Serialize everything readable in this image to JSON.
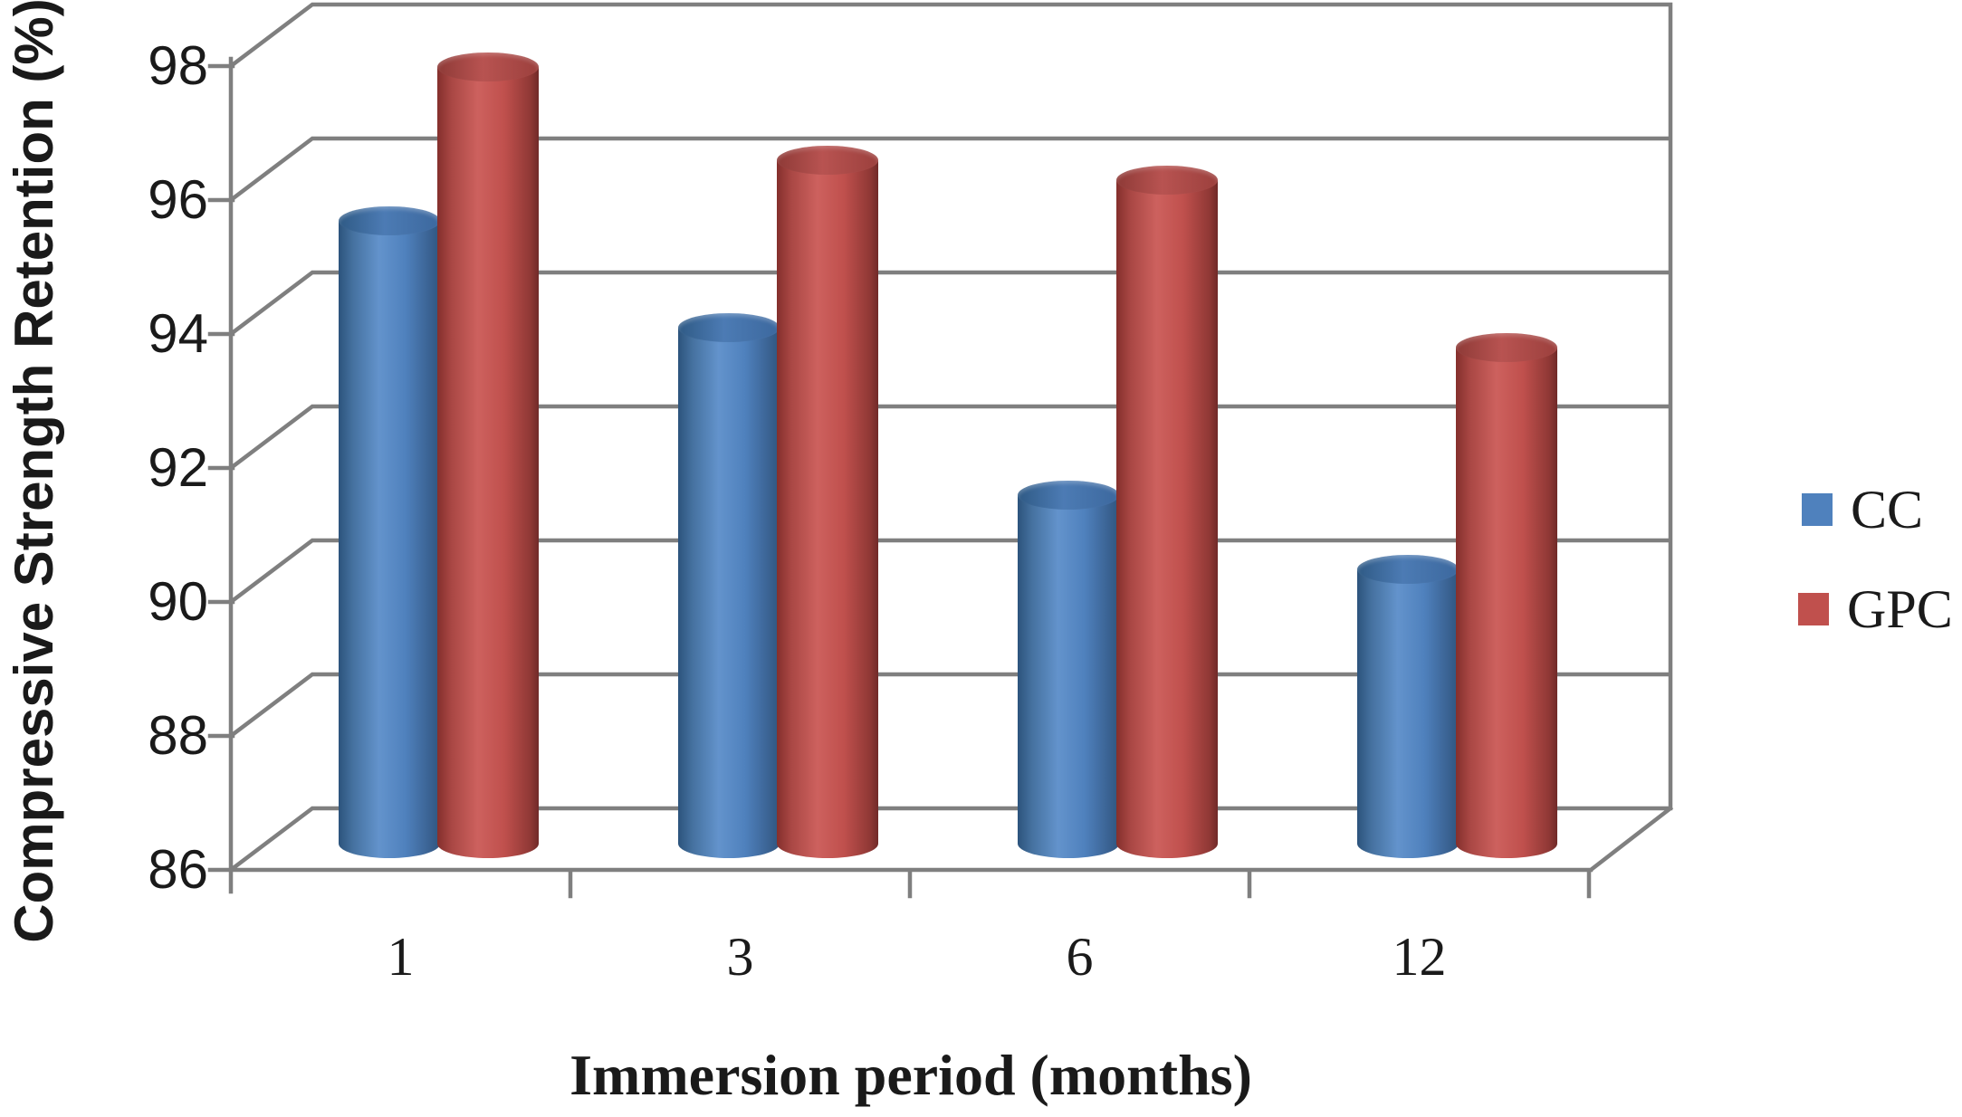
{
  "figure": {
    "background": "#ffffff",
    "text_color": "#1a1a1a"
  },
  "chart_data": {
    "type": "bar",
    "subtype": "3d-cylinder",
    "title": "",
    "xlabel": "Immersion period (months)",
    "ylabel": "Compressive Strength Retention (%)",
    "categories": [
      "1",
      "3",
      "6",
      "12"
    ],
    "series": [
      {
        "name": "CC",
        "color": "#4F81BD",
        "values": [
          95.3,
          93.7,
          91.2,
          90.1
        ]
      },
      {
        "name": "GPC",
        "color": "#C0504D",
        "values": [
          97.6,
          96.2,
          95.9,
          93.4
        ]
      }
    ],
    "ylim": [
      86,
      98
    ],
    "ytick_step": 2,
    "ytick_labels": [
      "86",
      "88",
      "90",
      "92",
      "94",
      "96",
      "98"
    ],
    "grid": true,
    "gridline_color": "#7f7f7f",
    "legend_position": "right"
  }
}
